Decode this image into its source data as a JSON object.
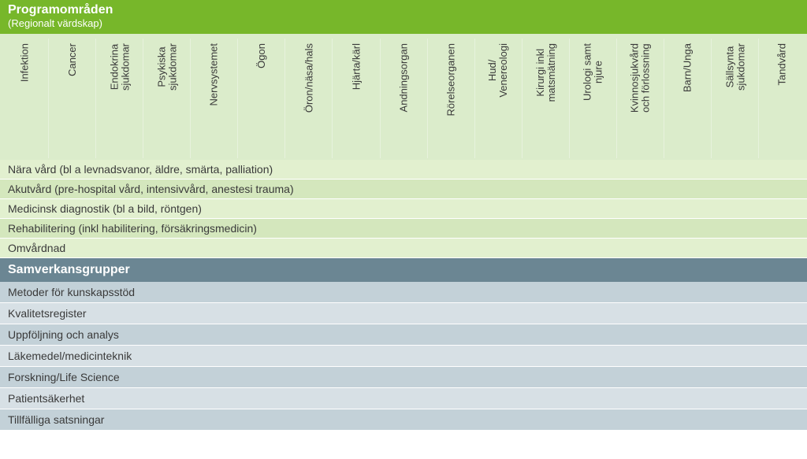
{
  "colors": {
    "prog_header_bg": "#77b72a",
    "col_bg": "#dbeccb",
    "prog_row_a": "#e2f0cf",
    "prog_row_b": "#d4e7bd",
    "sam_header_bg": "#6b8693",
    "sam_row_a": "#c3d1d8",
    "sam_row_b": "#d7e0e5"
  },
  "program": {
    "title": "Programområden",
    "subtitle": "(Regionalt värdskap)",
    "columns": [
      {
        "line1": "Infektion",
        "line2": ""
      },
      {
        "line1": "Cancer",
        "line2": ""
      },
      {
        "line1": "Endokrina",
        "line2": "sjukdomar"
      },
      {
        "line1": "Psykiska",
        "line2": "sjukdomar"
      },
      {
        "line1": "Nervsystemet",
        "line2": ""
      },
      {
        "line1": "Ögon",
        "line2": ""
      },
      {
        "line1": "Öron/näsa/hals",
        "line2": ""
      },
      {
        "line1": "Hjärta/kärl",
        "line2": ""
      },
      {
        "line1": "Andningsorgan",
        "line2": ""
      },
      {
        "line1": "Rörelseorganen",
        "line2": ""
      },
      {
        "line1": "Hud/",
        "line2": "Venereologi"
      },
      {
        "line1": "Kirurgi inkl",
        "line2": "matsmätning"
      },
      {
        "line1": "Urologi samt",
        "line2": "njure"
      },
      {
        "line1": "Kvinnosjukvård",
        "line2": "och förlossning"
      },
      {
        "line1": "Barn/Unga",
        "line2": ""
      },
      {
        "line1": "Sällsynta",
        "line2": "sjukdomar"
      },
      {
        "line1": "Tandvård",
        "line2": ""
      }
    ],
    "rows": [
      "Nära vård (bl a levnadsvanor, äldre, smärta, palliation)",
      "Akutvård (pre-hospital vård, intensivvård, anestesi trauma)",
      "Medicinsk diagnostik (bl a bild, röntgen)",
      "Rehabilitering (inkl habilitering, försäkringsmedicin)",
      "Omvårdnad"
    ]
  },
  "samverkan": {
    "title": "Samverkansgrupper",
    "rows": [
      "Metoder för kunskapsstöd",
      "Kvalitetsregister",
      "Uppföljning och analys",
      "Läkemedel/medicinteknik",
      "Forskning/Life Science",
      "Patientsäkerhet",
      "Tillfälliga satsningar"
    ]
  }
}
